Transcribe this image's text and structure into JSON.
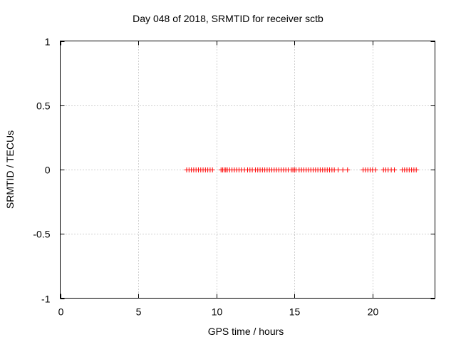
{
  "chart_data": {
    "type": "scatter",
    "title": "Day 048 of 2018, SRMTID for receiver sctb",
    "xlabel": "GPS time / hours",
    "ylabel": "SRMTID / TECUs",
    "xlim": [
      0,
      24
    ],
    "ylim": [
      -1,
      1
    ],
    "xticks": [
      0,
      5,
      10,
      15,
      20
    ],
    "xtick_labels": [
      "0",
      "5",
      "10",
      "15",
      "20"
    ],
    "yticks": [
      1,
      0.5,
      0,
      -0.5,
      -1
    ],
    "ytick_labels": [
      "1",
      "0.5",
      "0",
      "-0.5",
      "-1"
    ],
    "grid": true,
    "marker": "+",
    "series": [
      {
        "name": "SRMTID",
        "color": "#ff0000",
        "x": [
          8.1,
          8.25,
          8.4,
          8.55,
          8.7,
          8.85,
          9.0,
          9.15,
          9.3,
          9.45,
          9.6,
          9.75,
          10.3,
          10.4,
          10.5,
          10.6,
          10.7,
          10.85,
          11.0,
          11.15,
          11.3,
          11.45,
          11.6,
          11.8,
          12.0,
          12.15,
          12.3,
          12.5,
          12.65,
          12.8,
          12.95,
          13.1,
          13.25,
          13.4,
          13.55,
          13.7,
          13.85,
          14.0,
          14.15,
          14.3,
          14.45,
          14.6,
          14.8,
          14.9,
          15.0,
          15.1,
          15.3,
          15.45,
          15.6,
          15.75,
          15.9,
          16.05,
          16.2,
          16.35,
          16.5,
          16.65,
          16.8,
          16.95,
          17.1,
          17.25,
          17.4,
          17.55,
          17.8,
          18.1,
          18.4,
          19.4,
          19.55,
          19.7,
          19.85,
          20.0,
          20.2,
          20.7,
          20.85,
          21.0,
          21.2,
          21.4,
          21.9,
          22.05,
          22.2,
          22.35,
          22.5,
          22.65,
          22.8
        ],
        "y": [
          0,
          0,
          0,
          0,
          0,
          0,
          0,
          0,
          0,
          0,
          0,
          0,
          0,
          0,
          0,
          0,
          0,
          0,
          0,
          0,
          0,
          0,
          0,
          0,
          0,
          0,
          0,
          0,
          0,
          0,
          0,
          0,
          0,
          0,
          0,
          0,
          0,
          0,
          0,
          0,
          0,
          0,
          0,
          0,
          0,
          0,
          0,
          0,
          0,
          0,
          0,
          0,
          0,
          0,
          0,
          0,
          0,
          0,
          0,
          0,
          0,
          0,
          0,
          0,
          0,
          0,
          0,
          0,
          0,
          0,
          0,
          0,
          0,
          0,
          0,
          0,
          0,
          0,
          0,
          0,
          0,
          0,
          0
        ]
      }
    ]
  }
}
